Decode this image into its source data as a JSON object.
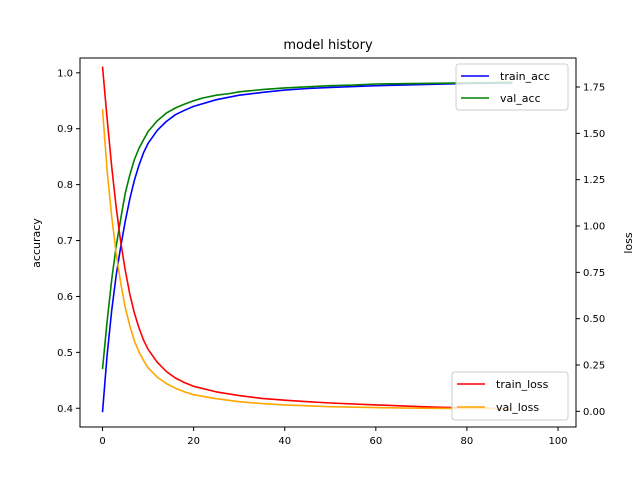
{
  "chart_data": {
    "type": "line",
    "title": "model history",
    "xlabel": "",
    "ylabel": "accuracy",
    "y2label": "loss",
    "xlim": [
      -4.95,
      103.95
    ],
    "ylim": [
      0.3665,
      1.0265
    ],
    "y2lim": [
      -0.0845,
      1.9065
    ],
    "xticks": [
      "0",
      "20",
      "40",
      "60",
      "80",
      "100"
    ],
    "yticks": [
      "0.4",
      "0.5",
      "0.6",
      "0.7",
      "0.8",
      "0.9",
      "1.0"
    ],
    "y2ticks": [
      "0.00",
      "0.25",
      "0.50",
      "0.75",
      "1.00",
      "1.25",
      "1.50",
      "1.75"
    ],
    "grid": false,
    "legend_top": {
      "placement": "top-right",
      "entries": [
        "train_acc",
        "val_acc"
      ]
    },
    "legend_bottom": {
      "placement": "bottom-right",
      "entries": [
        "train_loss",
        "val_loss"
      ]
    },
    "series": [
      {
        "name": "train_acc",
        "axis": "left",
        "color": "#0000ff",
        "x": [
          0,
          1,
          2,
          3,
          4,
          5,
          6,
          7,
          8,
          9,
          10,
          12,
          14,
          16,
          18,
          20,
          25,
          30,
          35,
          40,
          45,
          50,
          60,
          70,
          80,
          90
        ],
        "y": [
          0.393,
          0.495,
          0.575,
          0.638,
          0.69,
          0.735,
          0.775,
          0.808,
          0.835,
          0.857,
          0.874,
          0.897,
          0.913,
          0.925,
          0.933,
          0.94,
          0.952,
          0.96,
          0.965,
          0.969,
          0.972,
          0.974,
          0.977,
          0.979,
          0.981,
          0.982
        ]
      },
      {
        "name": "val_acc",
        "axis": "left",
        "color": "#008000",
        "x": [
          0,
          1,
          2,
          3,
          4,
          5,
          6,
          7,
          8,
          9,
          10,
          12,
          14,
          16,
          18,
          20,
          22,
          25,
          28,
          30,
          35,
          40,
          45,
          50,
          55,
          60,
          70,
          80,
          90
        ],
        "y": [
          0.47,
          0.555,
          0.63,
          0.69,
          0.74,
          0.785,
          0.818,
          0.845,
          0.865,
          0.88,
          0.895,
          0.914,
          0.928,
          0.937,
          0.944,
          0.95,
          0.955,
          0.96,
          0.963,
          0.966,
          0.97,
          0.973,
          0.975,
          0.977,
          0.978,
          0.98,
          0.981,
          0.982,
          0.983
        ]
      },
      {
        "name": "train_loss",
        "axis": "right",
        "color": "#ff0000",
        "x": [
          0,
          1,
          2,
          3,
          4,
          5,
          6,
          7,
          8,
          9,
          10,
          12,
          14,
          16,
          18,
          20,
          25,
          30,
          35,
          40,
          45,
          50,
          60,
          70,
          80,
          90
        ],
        "y": [
          1.86,
          1.58,
          1.32,
          1.1,
          0.91,
          0.76,
          0.63,
          0.53,
          0.45,
          0.385,
          0.335,
          0.265,
          0.215,
          0.18,
          0.155,
          0.135,
          0.105,
          0.085,
          0.07,
          0.06,
          0.052,
          0.045,
          0.035,
          0.025,
          0.018,
          0.014
        ]
      },
      {
        "name": "val_loss",
        "axis": "right",
        "color": "#ffa500",
        "x": [
          0,
          1,
          2,
          3,
          4,
          5,
          6,
          7,
          8,
          9,
          10,
          12,
          14,
          16,
          18,
          20,
          25,
          30,
          35,
          40,
          45,
          50,
          60,
          70,
          80,
          90
        ],
        "y": [
          1.63,
          1.3,
          1.05,
          0.85,
          0.69,
          0.56,
          0.46,
          0.38,
          0.32,
          0.275,
          0.235,
          0.185,
          0.15,
          0.125,
          0.105,
          0.09,
          0.068,
          0.052,
          0.042,
          0.035,
          0.03,
          0.025,
          0.02,
          0.017,
          0.015,
          0.014
        ]
      }
    ]
  }
}
